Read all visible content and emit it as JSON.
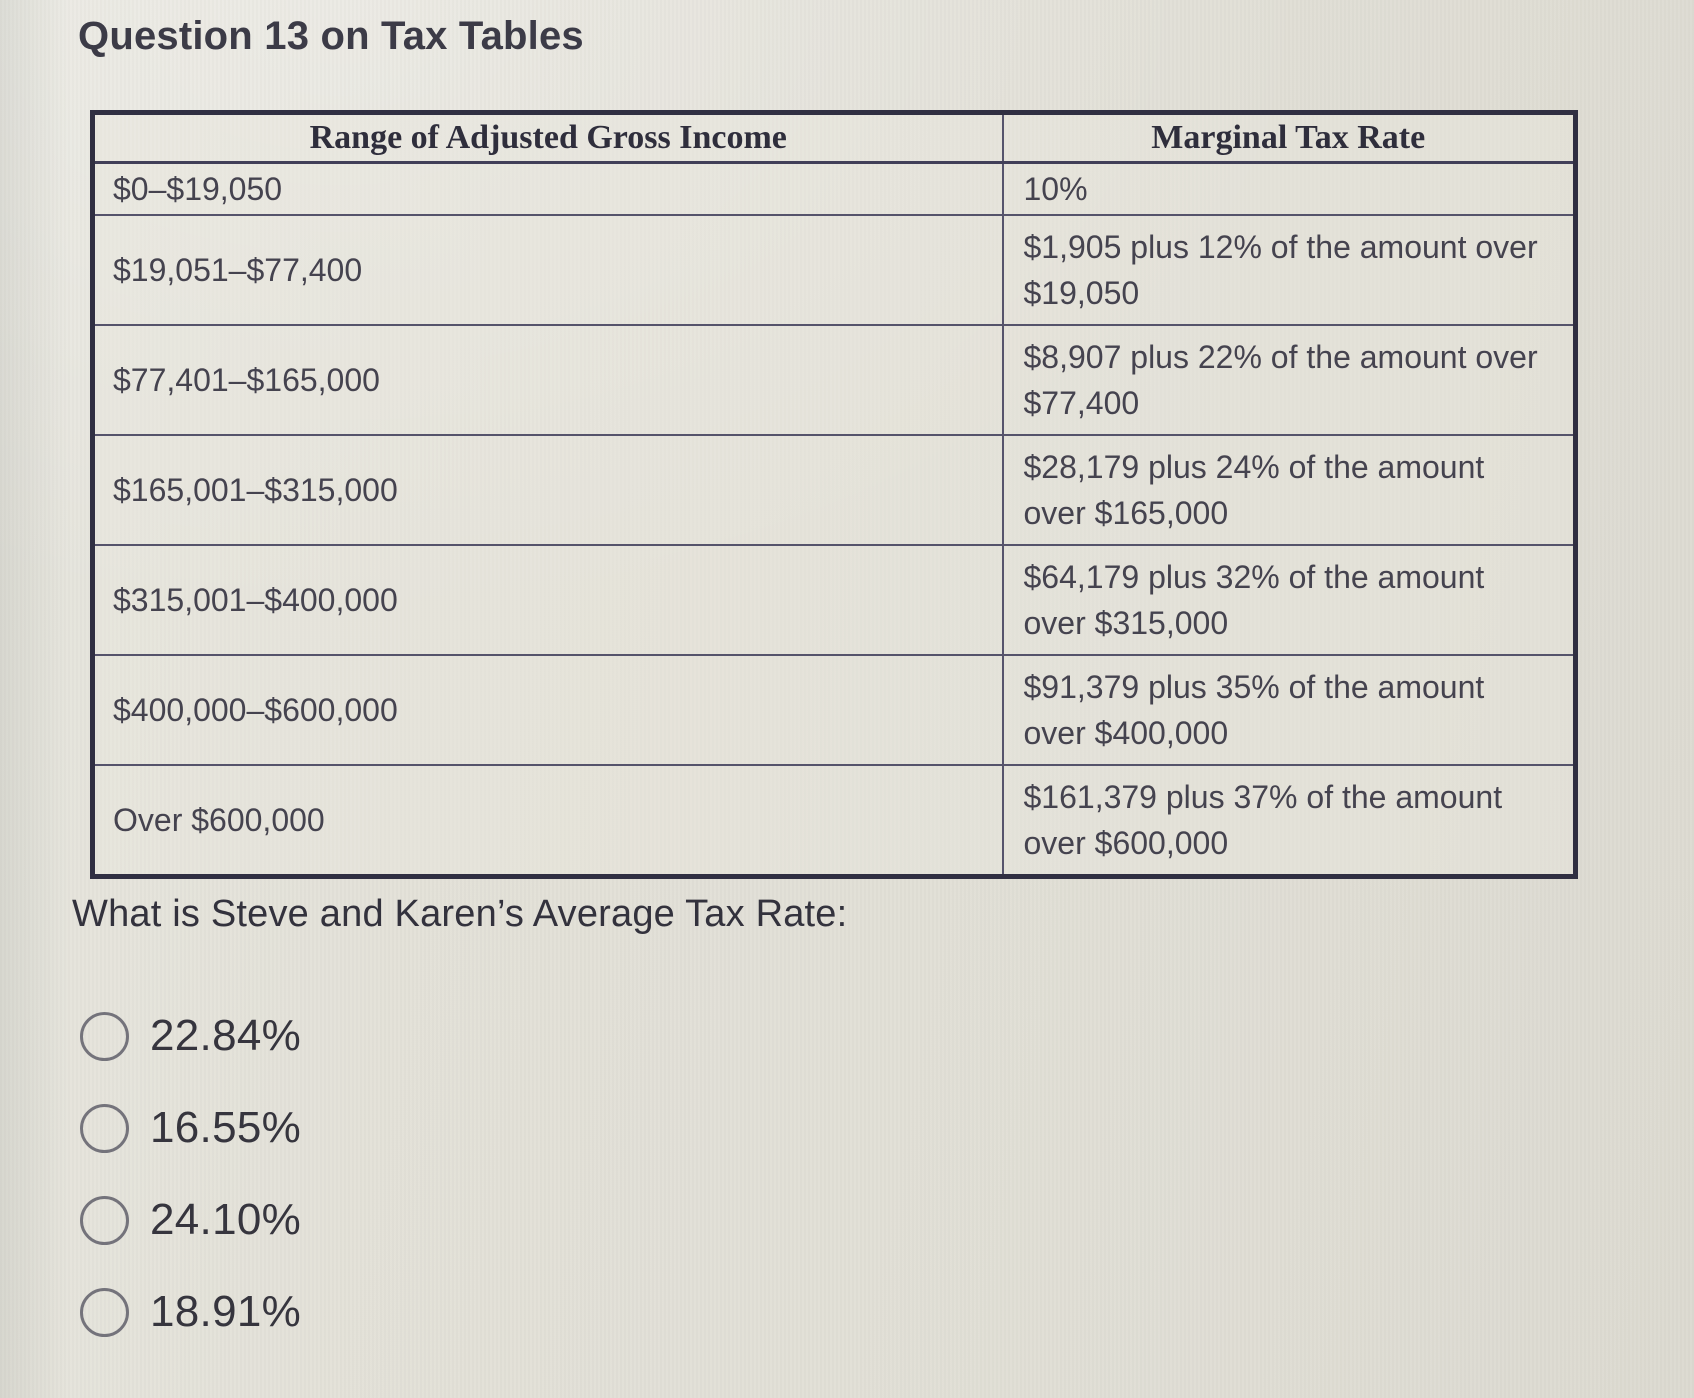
{
  "header": {
    "title": "Question 13 on Tax Tables"
  },
  "table": {
    "headers": [
      "Range of Adjusted Gross Income",
      "Marginal Tax Rate"
    ],
    "rows": [
      {
        "range": "$0–$19,050",
        "rate": "10%"
      },
      {
        "range": "$19,051–$77,400",
        "rate": "$1,905 plus 12% of the amount over $19,050"
      },
      {
        "range": "$77,401–$165,000",
        "rate": "$8,907 plus 22% of the amount over $77,400"
      },
      {
        "range": "$165,001–$315,000",
        "rate": "$28,179 plus 24% of the amount over $165,000"
      },
      {
        "range": "$315,001–$400,000",
        "rate": "$64,179 plus 32% of the amount over $315,000"
      },
      {
        "range": "$400,000–$600,000",
        "rate": "$91,379 plus 35% of the amount over $400,000"
      },
      {
        "range": "Over $600,000",
        "rate": "$161,379 plus 37% of the amount over $600,000"
      }
    ]
  },
  "question": {
    "prompt": "What is Steve and Karen’s Average Tax Rate:"
  },
  "options": [
    {
      "label": "22.84%",
      "selected": false
    },
    {
      "label": "16.55%",
      "selected": false
    },
    {
      "label": "24.10%",
      "selected": false
    },
    {
      "label": "18.91%",
      "selected": false
    }
  ],
  "colors": {
    "page_background": "#e2e0d7",
    "table_border": "#302f42",
    "table_inner_line": "#55536b",
    "text": "#3b3a46"
  }
}
